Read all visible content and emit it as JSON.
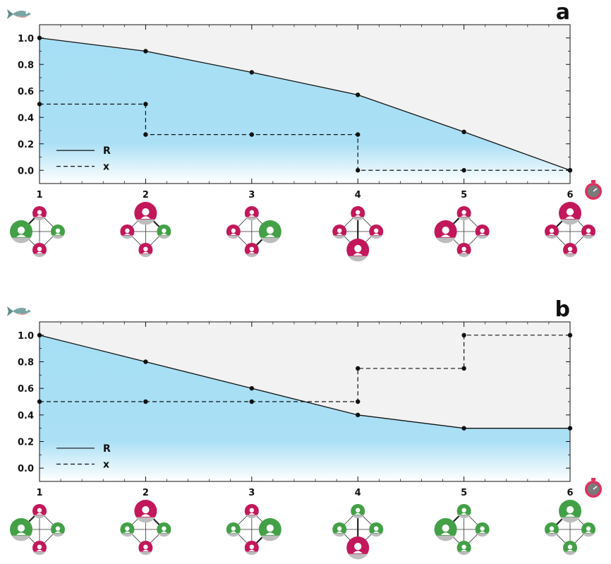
{
  "chart_data": [
    {
      "panel": "a",
      "type": "line",
      "x": [
        1,
        2,
        3,
        4,
        5,
        6
      ],
      "series": [
        {
          "name": "R",
          "style": "solid",
          "values": [
            1.0,
            0.9,
            0.74,
            0.57,
            0.29,
            0.0
          ]
        },
        {
          "name": "x",
          "style": "dashed-step",
          "values": [
            0.5,
            0.27,
            0.27,
            0.0,
            0.0,
            0.0
          ]
        }
      ],
      "ytick_labels": [
        "1.0",
        "0.8",
        "0.6",
        "0.4",
        "0.2",
        "0.0"
      ],
      "xtick_labels": [
        "1",
        "2",
        "3",
        "4",
        "5",
        "6"
      ],
      "xlim": [
        1,
        6
      ],
      "ylim": [
        -0.1,
        1.1
      ],
      "networks": [
        {
          "top": "red",
          "left": "green",
          "right": "green",
          "bottom": "red",
          "big": "left",
          "bold": "left-top"
        },
        {
          "top": "red",
          "left": "red",
          "right": "green",
          "bottom": "red",
          "big": "top",
          "bold": "top-right"
        },
        {
          "top": "red",
          "left": "red",
          "right": "green",
          "bottom": "red",
          "big": "right",
          "bold": "right-bottom"
        },
        {
          "top": "red",
          "left": "red",
          "right": "red",
          "bottom": "red",
          "big": "bottom",
          "bold": "bottom-top"
        },
        {
          "top": "red",
          "left": "red",
          "right": "red",
          "bottom": "red",
          "big": "left",
          "bold": "left-top"
        },
        {
          "top": "red",
          "left": "red",
          "right": "red",
          "bottom": "red",
          "big": "top",
          "bold": "top-left"
        }
      ]
    },
    {
      "panel": "b",
      "type": "line",
      "x": [
        1,
        2,
        3,
        4,
        5,
        6
      ],
      "series": [
        {
          "name": "R",
          "style": "solid",
          "values": [
            1.0,
            0.8,
            0.6,
            0.4,
            0.3,
            0.3
          ]
        },
        {
          "name": "x",
          "style": "dashed-step",
          "values": [
            0.5,
            0.5,
            0.5,
            0.75,
            1.0,
            1.0
          ]
        }
      ],
      "ytick_labels": [
        "1.0",
        "0.8",
        "0.6",
        "0.4",
        "0.2",
        "0.0"
      ],
      "xtick_labels": [
        "1",
        "2",
        "3",
        "4",
        "5",
        "6"
      ],
      "xlim": [
        1,
        6
      ],
      "ylim": [
        -0.1,
        1.1
      ],
      "networks": [
        {
          "top": "red",
          "left": "green",
          "right": "green",
          "bottom": "red",
          "big": "left",
          "bold": "left-top"
        },
        {
          "top": "red",
          "left": "green",
          "right": "green",
          "bottom": "red",
          "big": "top",
          "bold": "top-right"
        },
        {
          "top": "red",
          "left": "green",
          "right": "green",
          "bottom": "red",
          "big": "right",
          "bold": "right-bottom"
        },
        {
          "top": "green",
          "left": "green",
          "right": "green",
          "bottom": "red",
          "big": "bottom",
          "bold": "bottom-top"
        },
        {
          "top": "green",
          "left": "green",
          "right": "green",
          "bottom": "green",
          "big": "left",
          "bold": "left-top"
        },
        {
          "top": "green",
          "left": "green",
          "right": "green",
          "bottom": "green",
          "big": "top",
          "bold": "top-left"
        }
      ]
    }
  ],
  "colors": {
    "plot_background": "#f2f2f2",
    "area_fill_top": "#a6dff5",
    "area_fill_bottom": "#ffffff",
    "line": "#111111",
    "node_red": "#c2185b",
    "node_green": "#43a047",
    "node_base": "#bdbdbd",
    "fish": "#7aa4a4",
    "stopwatch": "#e03060"
  },
  "icons": [
    "fish-icon",
    "stopwatch-icon",
    "person-node-icon"
  ]
}
